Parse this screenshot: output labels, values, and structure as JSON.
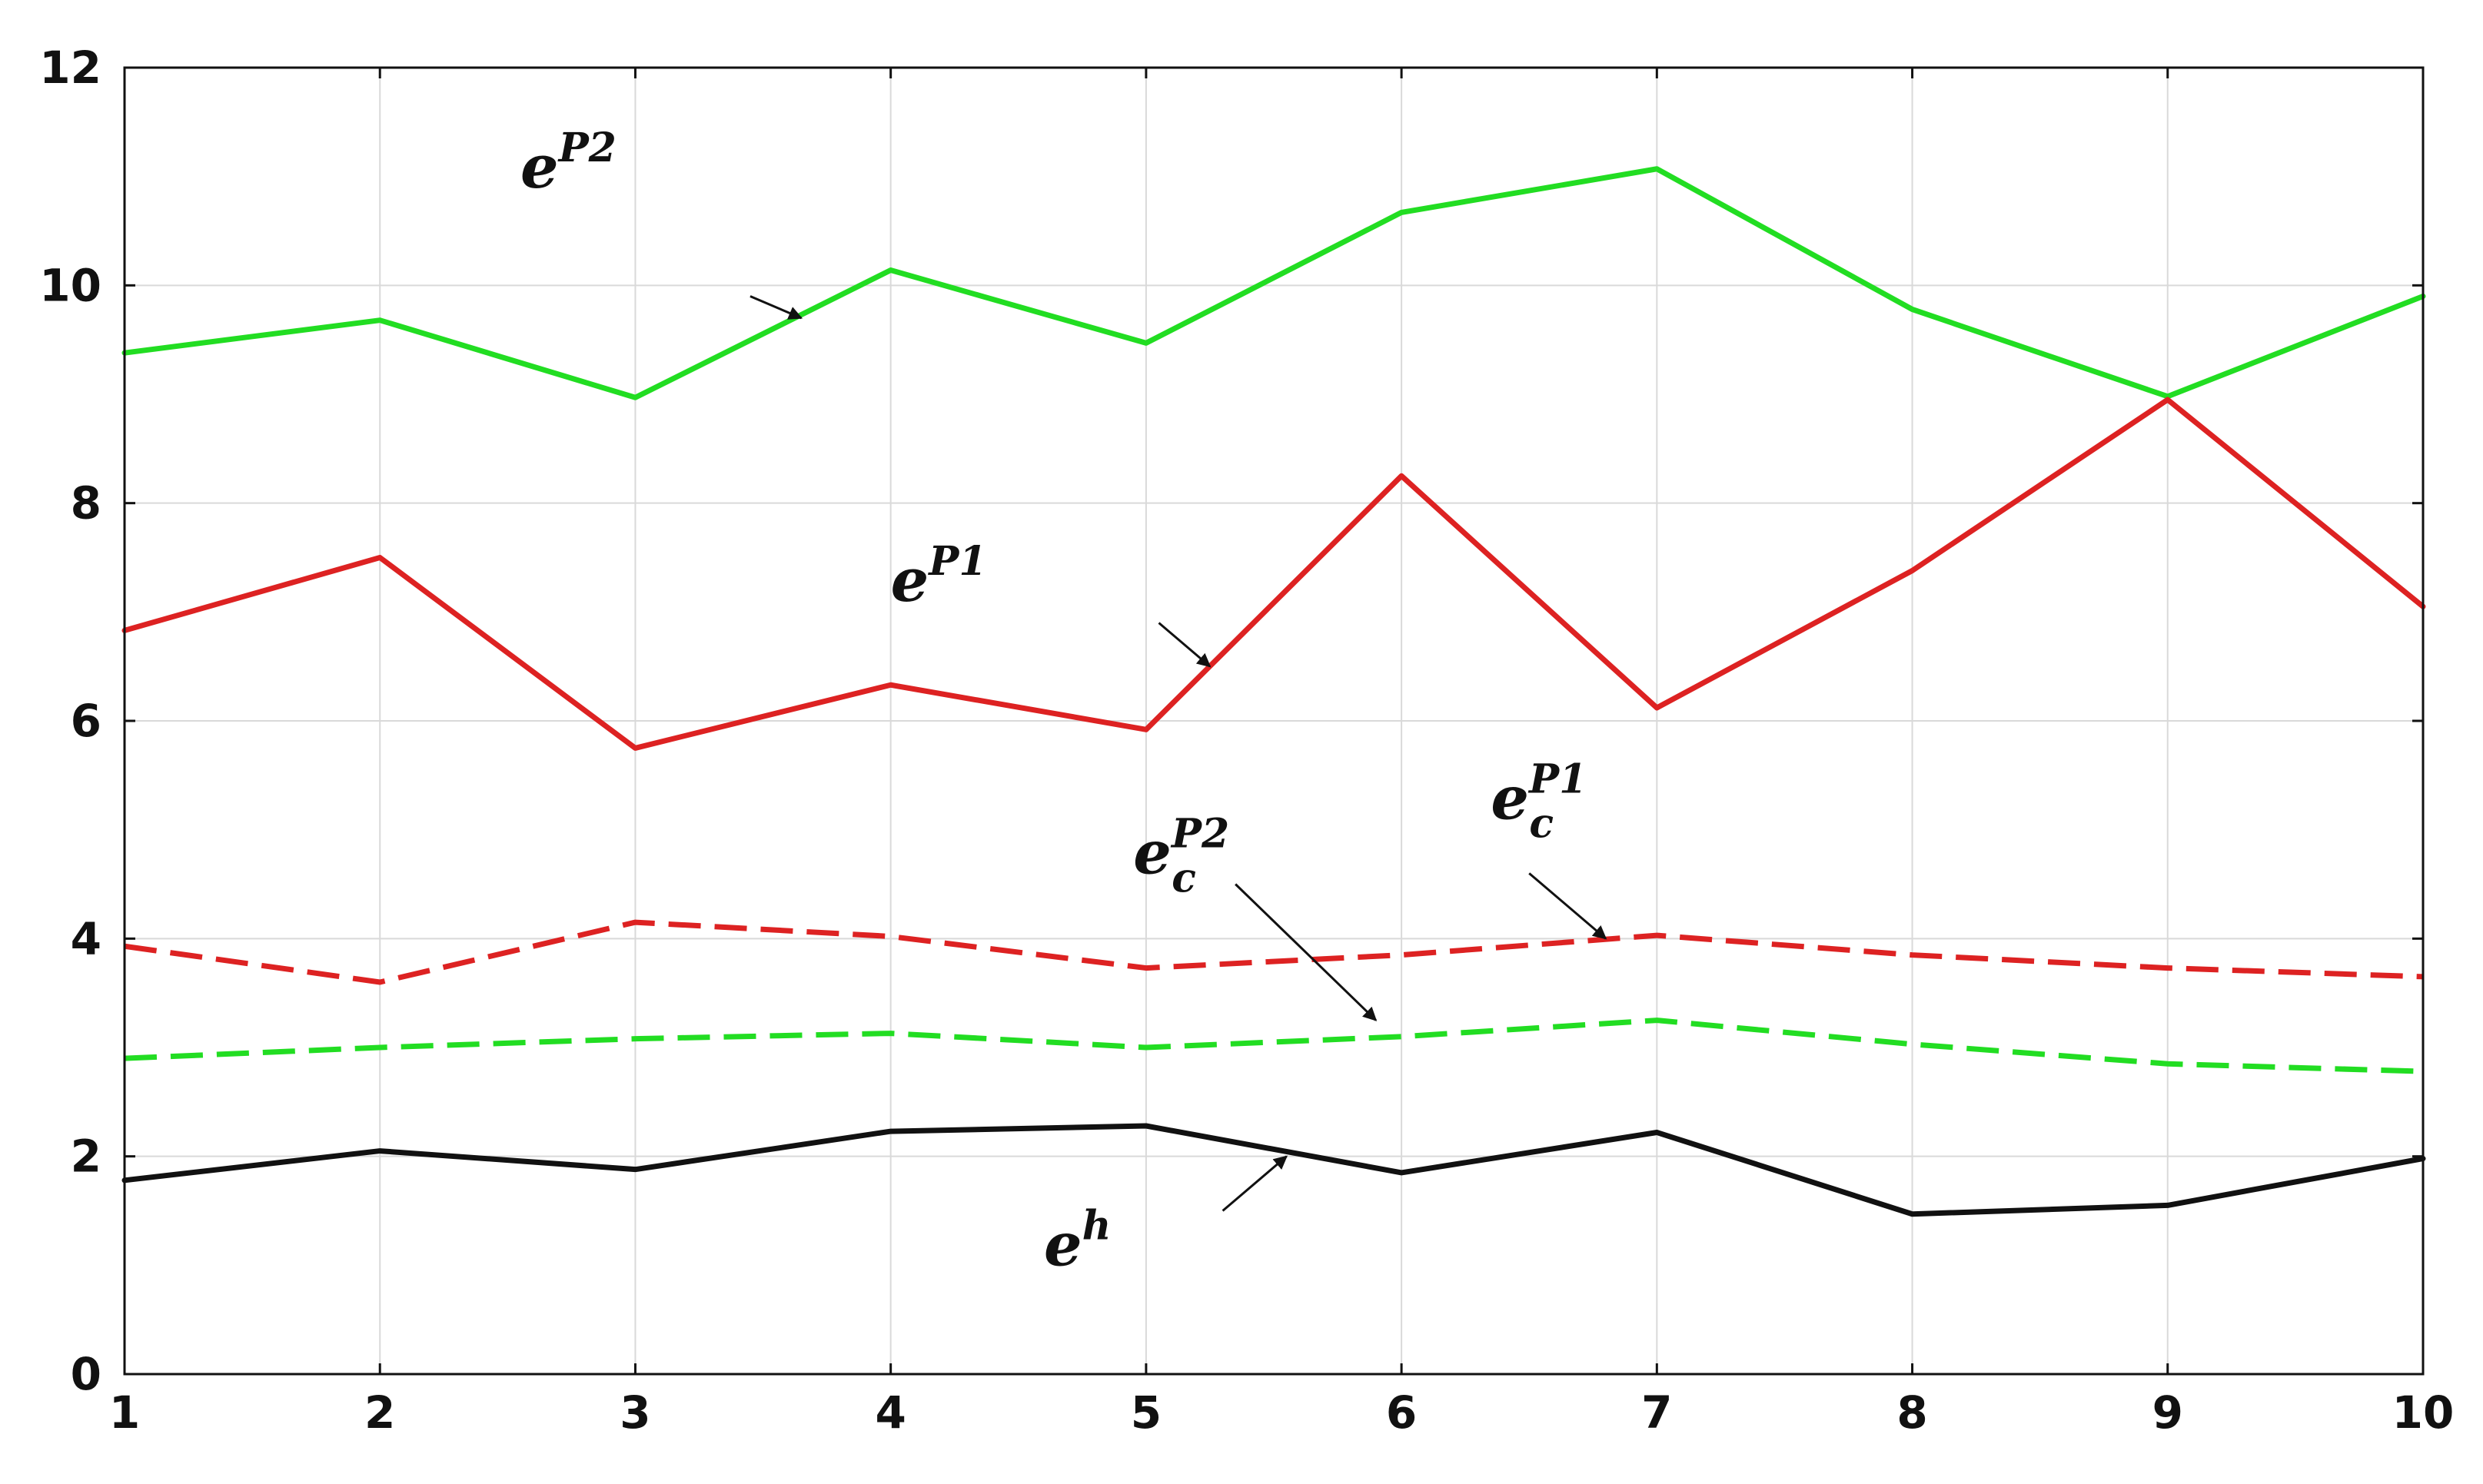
{
  "chart_data": {
    "type": "line",
    "title": "",
    "xlabel": "",
    "ylabel": "",
    "x": [
      1,
      2,
      3,
      4,
      5,
      6,
      7,
      8,
      9,
      10
    ],
    "xlim": [
      1,
      10
    ],
    "ylim": [
      0,
      12
    ],
    "x_ticks": [
      "1",
      "2",
      "3",
      "4",
      "5",
      "6",
      "7",
      "8",
      "9",
      "10"
    ],
    "y_ticks": [
      "0",
      "2",
      "4",
      "6",
      "8",
      "10",
      "12"
    ],
    "grid": true,
    "legend": "none",
    "series": [
      {
        "key": "eP2",
        "color": "#22dd22",
        "dash": "solid",
        "values": [
          9.38,
          9.68,
          8.97,
          10.14,
          9.47,
          10.67,
          11.07,
          9.78,
          8.98,
          9.9
        ]
      },
      {
        "key": "eP1",
        "color": "#dd2222",
        "dash": "solid",
        "values": [
          6.83,
          7.5,
          5.75,
          6.33,
          5.92,
          8.25,
          6.12,
          7.38,
          8.95,
          7.05
        ]
      },
      {
        "key": "ecP1",
        "color": "#dd2222",
        "dash": "dashed",
        "values": [
          3.93,
          3.6,
          4.15,
          4.02,
          3.73,
          3.85,
          4.03,
          3.85,
          3.73,
          3.65
        ]
      },
      {
        "key": "ecP2",
        "color": "#22dd22",
        "dash": "dashed",
        "values": [
          2.9,
          3.0,
          3.08,
          3.13,
          3.0,
          3.1,
          3.25,
          3.03,
          2.85,
          2.78
        ]
      },
      {
        "key": "eh",
        "color": "#111111",
        "dash": "solid",
        "values": [
          1.78,
          2.05,
          1.88,
          2.23,
          2.28,
          1.85,
          2.22,
          1.47,
          1.55,
          1.98
        ]
      }
    ],
    "annotations": [
      {
        "key": "eP2",
        "base": "e",
        "sup": "P2",
        "sub": "",
        "x": 2.55,
        "y": 10.9,
        "arrow_from": [
          3.45,
          9.9
        ],
        "arrow_to": [
          3.65,
          9.7
        ]
      },
      {
        "key": "eP1",
        "base": "e",
        "sup": "P1",
        "sub": "",
        "x": 4.0,
        "y": 7.1,
        "arrow_from": [
          5.05,
          6.9
        ],
        "arrow_to": [
          5.25,
          6.5
        ]
      },
      {
        "key": "ecP2",
        "base": "e",
        "sup": "P2",
        "sub": "c",
        "x": 4.95,
        "y": 4.6,
        "arrow_from": [
          5.35,
          4.5
        ],
        "arrow_to": [
          5.9,
          3.25
        ]
      },
      {
        "key": "ecP1",
        "base": "e",
        "sup": "P1",
        "sub": "c",
        "x": 6.35,
        "y": 5.1,
        "arrow_from": [
          6.5,
          4.6
        ],
        "arrow_to": [
          6.8,
          4.0
        ]
      },
      {
        "key": "eh",
        "base": "e",
        "sup": "h",
        "sub": "",
        "x": 4.6,
        "y": 1.0,
        "arrow_from": [
          5.3,
          1.5
        ],
        "arrow_to": [
          5.55,
          2.0
        ]
      }
    ]
  }
}
